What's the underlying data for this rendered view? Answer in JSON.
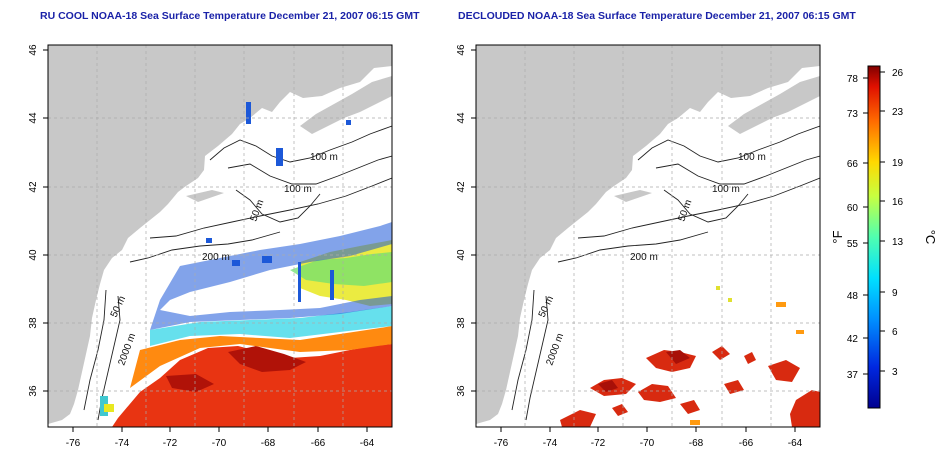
{
  "maps": {
    "left": {
      "title": "RU COOL NOAA-18 Sea Surface Temperature December 21, 2007 06:15 GMT",
      "contour_labels": [
        "100 m",
        "100 m",
        "50 m",
        "200 m",
        "50 m",
        "2000 m"
      ]
    },
    "right": {
      "title": "DECLOUDED NOAA-18 Sea Surface Temperature December 21, 2007 06:15 GMT",
      "contour_labels": [
        "100 m",
        "100 m",
        "50 m",
        "200 m",
        "50 m",
        "2000 m"
      ]
    }
  },
  "axes": {
    "x_ticks": [
      "-76",
      "-74",
      "-72",
      "-70",
      "-68",
      "-66",
      "-64"
    ],
    "y_ticks": [
      "36",
      "38",
      "40",
      "42",
      "44",
      "46"
    ]
  },
  "colorbar": {
    "f_label": "°F",
    "c_label": "°C",
    "f_ticks": [
      "78",
      "73",
      "66",
      "60",
      "55",
      "48",
      "42",
      "37"
    ],
    "c_ticks": [
      "26",
      "23",
      "19",
      "16",
      "13",
      "9",
      "6",
      "3"
    ]
  },
  "colors": {
    "land": "#c8c8c8",
    "ocean": "#ffffff",
    "title": "#1a22a8",
    "warm": "#e03010",
    "cool": "#1c58d8"
  }
}
